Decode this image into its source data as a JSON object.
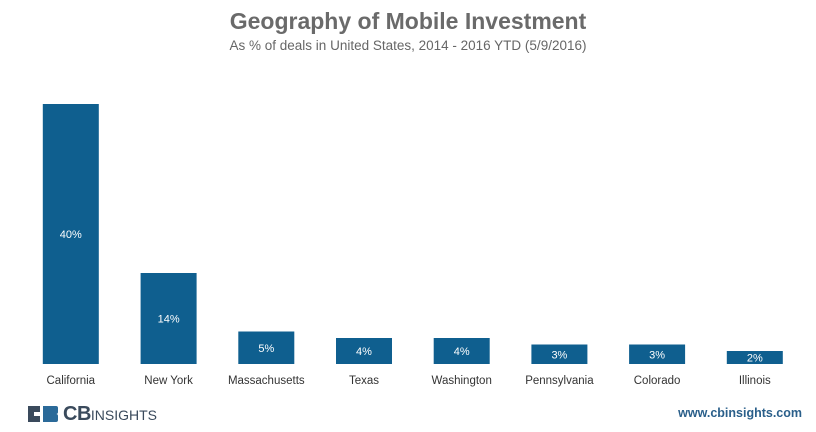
{
  "chart_data": {
    "type": "bar",
    "title": "Geography of Mobile Investment",
    "subtitle": "As % of deals in United States, 2014 - 2016 YTD (5/9/2016)",
    "categories": [
      "California",
      "New York",
      "Massachusetts",
      "Texas",
      "Washington",
      "Pennsylvania",
      "Colorado",
      "Illinois"
    ],
    "values": [
      40,
      14,
      5,
      4,
      4,
      3,
      3,
      2
    ],
    "value_labels": [
      "40%",
      "14%",
      "5%",
      "4%",
      "4%",
      "3%",
      "3%",
      "2%"
    ],
    "unit": "%",
    "ylim": [
      0,
      40
    ],
    "grid": false,
    "legend": "none",
    "bar_color": "#0f5f8f"
  },
  "footer": {
    "logo_bold": "CB",
    "logo_light": "INSIGHTS",
    "website": "www.cbinsights.com"
  },
  "colors": {
    "logo_dark": "#3a4a5c",
    "logo_blue": "#2b6a99"
  }
}
